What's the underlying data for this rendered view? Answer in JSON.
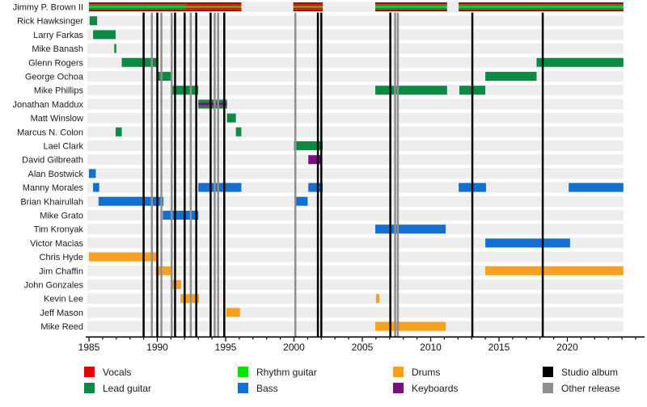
{
  "legend": {
    "items": [
      {
        "label": "Vocals",
        "color": "#e60000"
      },
      {
        "label": "Lead guitar",
        "color": "#0b8a43"
      },
      {
        "label": "Rhythm guitar",
        "color": "#00e400"
      },
      {
        "label": "Bass",
        "color": "#1470d0"
      },
      {
        "label": "Drums",
        "color": "#f8a01f"
      },
      {
        "label": "Keyboards",
        "color": "#7c0c80"
      },
      {
        "label": "Studio album",
        "color": "#000000"
      },
      {
        "label": "Other release",
        "color": "#8f8f8f"
      }
    ]
  },
  "chart_data": {
    "type": "timeline",
    "x_axis": {
      "start": 1985,
      "end": 2025,
      "ticks": [
        1985,
        1990,
        1995,
        2000,
        2005,
        2010,
        2015,
        2020
      ],
      "tick_labels": [
        "1985",
        "1990",
        "1995",
        "2000",
        "2005",
        "2010",
        "2015",
        "2020"
      ],
      "minor_tick_every": 1
    },
    "role_colors": {
      "vocals": "#e60000",
      "lead_guitar": "#0b8a43",
      "rhythm_guitar": "#00e400",
      "bass": "#1470d0",
      "drums": "#f8a01f",
      "keyboards": "#7c0c80"
    },
    "release_colors": {
      "studio_album": "#000000",
      "other_release": "#8f8f8f"
    },
    "vocals_border_color": "#9b0000",
    "members": [
      {
        "name": "Jimmy P. Brown II",
        "segments": [
          {
            "start": 1985.0,
            "end": 1992.05,
            "stripes": [
              "vocals",
              "lead_guitar",
              "rhythm_guitar",
              "lead_guitar",
              "vocals"
            ]
          },
          {
            "start": 1992.05,
            "end": 1996.15,
            "stripes": [
              "vocals",
              "vocals",
              "rhythm_guitar",
              "vocals",
              "vocals"
            ]
          },
          {
            "start": 1999.95,
            "end": 2002.1,
            "stripes": [
              "vocals",
              "vocals",
              "rhythm_guitar",
              "vocals",
              "vocals"
            ]
          },
          {
            "start": 2005.95,
            "end": 2011.2,
            "stripes": [
              "vocals",
              "lead_guitar",
              "rhythm_guitar",
              "lead_guitar",
              "vocals"
            ]
          },
          {
            "start": 2012.05,
            "end": 2024.1,
            "stripes": [
              "vocals",
              "lead_guitar",
              "rhythm_guitar",
              "lead_guitar",
              "vocals"
            ]
          }
        ]
      },
      {
        "name": "Rick Hawksinger",
        "segments": [
          {
            "start": 1985.05,
            "end": 1985.6,
            "stripes": [
              "lead_guitar"
            ]
          }
        ]
      },
      {
        "name": "Larry Farkas",
        "segments": [
          {
            "start": 1985.3,
            "end": 1986.95,
            "stripes": [
              "lead_guitar"
            ]
          }
        ]
      },
      {
        "name": "Mike Banash",
        "segments": [
          {
            "start": 1986.85,
            "end": 1987.0,
            "stripes": [
              "lead_guitar"
            ]
          }
        ]
      },
      {
        "name": "Glenn Rogers",
        "segments": [
          {
            "start": 1987.4,
            "end": 1990.0,
            "stripes": [
              "lead_guitar"
            ]
          },
          {
            "start": 2017.75,
            "end": 2024.1,
            "stripes": [
              "lead_guitar"
            ]
          }
        ]
      },
      {
        "name": "George Ochoa",
        "segments": [
          {
            "start": 1990.0,
            "end": 1991.05,
            "stripes": [
              "lead_guitar"
            ]
          },
          {
            "start": 2014.0,
            "end": 2017.75,
            "stripes": [
              "lead_guitar"
            ]
          }
        ]
      },
      {
        "name": "Mike Phillips",
        "segments": [
          {
            "start": 1991.05,
            "end": 1993.0,
            "stripes": [
              "lead_guitar"
            ]
          },
          {
            "start": 2005.95,
            "end": 2011.2,
            "stripes": [
              "lead_guitar"
            ]
          },
          {
            "start": 2012.1,
            "end": 2014.0,
            "stripes": [
              "lead_guitar"
            ]
          }
        ]
      },
      {
        "name": "Jonathan Maddux",
        "segments": [
          {
            "start": 1993.0,
            "end": 1995.1,
            "stripes": [
              "lead_guitar",
              "keyboards",
              "lead_guitar"
            ]
          }
        ]
      },
      {
        "name": "Matt Winslow",
        "segments": [
          {
            "start": 1995.1,
            "end": 1995.75,
            "stripes": [
              "lead_guitar"
            ]
          }
        ]
      },
      {
        "name": "Marcus N. Colon",
        "segments": [
          {
            "start": 1986.95,
            "end": 1987.4,
            "stripes": [
              "lead_guitar"
            ]
          },
          {
            "start": 1995.75,
            "end": 1996.15,
            "stripes": [
              "lead_guitar"
            ]
          }
        ]
      },
      {
        "name": "Lael Clark",
        "segments": [
          {
            "start": 2000.0,
            "end": 2002.1,
            "stripes": [
              "lead_guitar"
            ]
          }
        ]
      },
      {
        "name": "David Gilbreath",
        "segments": [
          {
            "start": 2001.05,
            "end": 2002.05,
            "stripes": [
              "keyboards"
            ]
          }
        ]
      },
      {
        "name": "Alan Bostwick",
        "segments": [
          {
            "start": 1985.0,
            "end": 1985.5,
            "stripes": [
              "bass"
            ]
          }
        ]
      },
      {
        "name": "Manny Morales",
        "segments": [
          {
            "start": 1985.3,
            "end": 1985.75,
            "stripes": [
              "bass"
            ]
          },
          {
            "start": 1993.0,
            "end": 1996.15,
            "stripes": [
              "bass"
            ]
          },
          {
            "start": 2001.05,
            "end": 2002.1,
            "stripes": [
              "bass"
            ]
          },
          {
            "start": 2012.05,
            "end": 2014.05,
            "stripes": [
              "bass"
            ]
          },
          {
            "start": 2020.1,
            "end": 2024.1,
            "stripes": [
              "bass"
            ]
          }
        ]
      },
      {
        "name": "Brian Khairullah",
        "segments": [
          {
            "start": 1985.7,
            "end": 1990.45,
            "stripes": [
              "bass"
            ]
          },
          {
            "start": 2000.05,
            "end": 2001.0,
            "stripes": [
              "bass"
            ]
          }
        ]
      },
      {
        "name": "Mike Grato",
        "segments": [
          {
            "start": 1990.4,
            "end": 1993.0,
            "stripes": [
              "bass"
            ]
          }
        ]
      },
      {
        "name": "Tim Kronyak",
        "segments": [
          {
            "start": 2005.95,
            "end": 2011.1,
            "stripes": [
              "bass"
            ]
          }
        ]
      },
      {
        "name": "Victor Macias",
        "segments": [
          {
            "start": 2014.0,
            "end": 2020.2,
            "stripes": [
              "bass"
            ]
          }
        ]
      },
      {
        "name": "Chris Hyde",
        "segments": [
          {
            "start": 1985.0,
            "end": 1990.05,
            "stripes": [
              "drums"
            ]
          }
        ]
      },
      {
        "name": "Jim Chaffin",
        "segments": [
          {
            "start": 1989.9,
            "end": 1991.0,
            "stripes": [
              "drums"
            ]
          },
          {
            "start": 2014.0,
            "end": 2024.1,
            "stripes": [
              "drums"
            ]
          }
        ]
      },
      {
        "name": "John Gonzales",
        "segments": [
          {
            "start": 1991.1,
            "end": 1991.75,
            "stripes": [
              "drums"
            ]
          }
        ]
      },
      {
        "name": "Kevin Lee",
        "segments": [
          {
            "start": 1991.7,
            "end": 1993.05,
            "stripes": [
              "drums"
            ]
          },
          {
            "start": 2006.0,
            "end": 2006.25,
            "stripes": [
              "drums"
            ]
          }
        ]
      },
      {
        "name": "Jeff Mason",
        "segments": [
          {
            "start": 1995.05,
            "end": 1996.05,
            "stripes": [
              "drums"
            ]
          }
        ]
      },
      {
        "name": "Mike Reed",
        "segments": [
          {
            "start": 2005.95,
            "end": 2011.1,
            "stripes": [
              "drums"
            ]
          }
        ]
      }
    ],
    "releases": [
      {
        "year": 1989.0,
        "type": "studio_album"
      },
      {
        "year": 1989.6,
        "type": "other_release"
      },
      {
        "year": 1990.0,
        "type": "studio_album"
      },
      {
        "year": 1990.3,
        "type": "other_release"
      },
      {
        "year": 1991.05,
        "type": "other_release"
      },
      {
        "year": 1991.3,
        "type": "studio_album"
      },
      {
        "year": 1992.0,
        "type": "studio_album"
      },
      {
        "year": 1992.45,
        "type": "other_release"
      },
      {
        "year": 1992.85,
        "type": "studio_album"
      },
      {
        "year": 1993.9,
        "type": "studio_album"
      },
      {
        "year": 1994.2,
        "type": "other_release"
      },
      {
        "year": 1994.45,
        "type": "other_release"
      },
      {
        "year": 1994.9,
        "type": "studio_album"
      },
      {
        "year": 2000.1,
        "type": "other_release"
      },
      {
        "year": 2001.75,
        "type": "studio_album"
      },
      {
        "year": 2002.0,
        "type": "studio_album"
      },
      {
        "year": 2007.05,
        "type": "studio_album"
      },
      {
        "year": 2007.4,
        "type": "other_release"
      },
      {
        "year": 2007.6,
        "type": "other_release"
      },
      {
        "year": 2013.05,
        "type": "studio_album"
      },
      {
        "year": 2018.2,
        "type": "studio_album"
      }
    ]
  }
}
